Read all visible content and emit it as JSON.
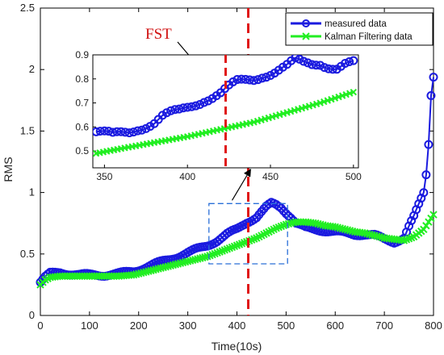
{
  "chart_data": {
    "type": "line",
    "xlabel": "Time(10s)",
    "ylabel": "RMS",
    "xlim": [
      0,
      800
    ],
    "ylim": [
      0,
      2.5
    ],
    "xticks": [
      0,
      100,
      200,
      300,
      400,
      500,
      600,
      700,
      800
    ],
    "yticks": [
      0,
      0.5,
      1,
      1.5,
      2,
      2.5
    ],
    "legend_position": "top-right",
    "fst_label": "FST",
    "fst_x": 423,
    "series": [
      {
        "name": "measured data",
        "color": "#1a1adf",
        "marker": "circle",
        "x": [
          0,
          10,
          20,
          40,
          60,
          80,
          100,
          130,
          160,
          190,
          220,
          250,
          280,
          300,
          320,
          340,
          360,
          380,
          400,
          420,
          440,
          450,
          460,
          470,
          480,
          490,
          500,
          510,
          520,
          540,
          560,
          580,
          600,
          620,
          640,
          660,
          680,
          700,
          720,
          740,
          750,
          760,
          770,
          780,
          785,
          790,
          795,
          800
        ],
        "y": [
          0.27,
          0.31,
          0.34,
          0.35,
          0.34,
          0.33,
          0.33,
          0.33,
          0.34,
          0.36,
          0.4,
          0.44,
          0.48,
          0.51,
          0.54,
          0.57,
          0.61,
          0.66,
          0.7,
          0.76,
          0.8,
          0.84,
          0.88,
          0.91,
          0.9,
          0.88,
          0.84,
          0.8,
          0.75,
          0.71,
          0.7,
          0.69,
          0.68,
          0.67,
          0.66,
          0.66,
          0.65,
          0.62,
          0.6,
          0.63,
          0.72,
          0.8,
          0.9,
          1.0,
          1.15,
          1.4,
          1.8,
          1.95
        ]
      },
      {
        "name": "Kalman Filtering data",
        "color": "#22ee22",
        "marker": "x",
        "x": [
          0,
          10,
          20,
          40,
          60,
          80,
          100,
          130,
          160,
          190,
          220,
          250,
          280,
          300,
          320,
          340,
          360,
          380,
          400,
          420,
          440,
          460,
          480,
          500,
          510,
          520,
          540,
          560,
          580,
          600,
          620,
          640,
          660,
          680,
          700,
          720,
          740,
          760,
          780,
          790,
          800
        ],
        "y": [
          0.25,
          0.29,
          0.31,
          0.32,
          0.32,
          0.32,
          0.32,
          0.32,
          0.32,
          0.33,
          0.36,
          0.39,
          0.42,
          0.44,
          0.46,
          0.48,
          0.51,
          0.54,
          0.57,
          0.6,
          0.63,
          0.67,
          0.71,
          0.74,
          0.75,
          0.76,
          0.76,
          0.75,
          0.73,
          0.72,
          0.7,
          0.68,
          0.67,
          0.65,
          0.63,
          0.62,
          0.61,
          0.64,
          0.7,
          0.76,
          0.82
        ]
      }
    ],
    "inset": {
      "xlim": [
        343,
        503
      ],
      "ylim": [
        0.43,
        0.9
      ],
      "xticks": [
        350,
        400,
        450,
        500
      ],
      "yticks": [
        0.5,
        0.6,
        0.7,
        0.8,
        0.9
      ],
      "series": [
        {
          "name": "measured data",
          "x": [
            345,
            350,
            355,
            360,
            365,
            370,
            375,
            380,
            385,
            390,
            395,
            400,
            405,
            410,
            415,
            420,
            425,
            430,
            435,
            440,
            445,
            450,
            455,
            460,
            465,
            470,
            475,
            480,
            485,
            490,
            495,
            500
          ],
          "y": [
            0.58,
            0.57,
            0.56,
            0.57,
            0.58,
            0.6,
            0.61,
            0.62,
            0.64,
            0.65,
            0.66,
            0.68,
            0.7,
            0.72,
            0.73,
            0.74,
            0.76,
            0.78,
            0.79,
            0.8,
            0.82,
            0.83,
            0.84,
            0.85,
            0.87,
            0.86,
            0.86,
            0.87,
            0.86,
            0.85,
            0.86,
            0.86
          ]
        },
        {
          "name": "Kalman Filtering data",
          "x": [
            345,
            360,
            380,
            400,
            420,
            440,
            460,
            480,
            500
          ],
          "y": [
            0.49,
            0.51,
            0.535,
            0.56,
            0.59,
            0.62,
            0.66,
            0.7,
            0.745
          ]
        }
      ]
    }
  }
}
